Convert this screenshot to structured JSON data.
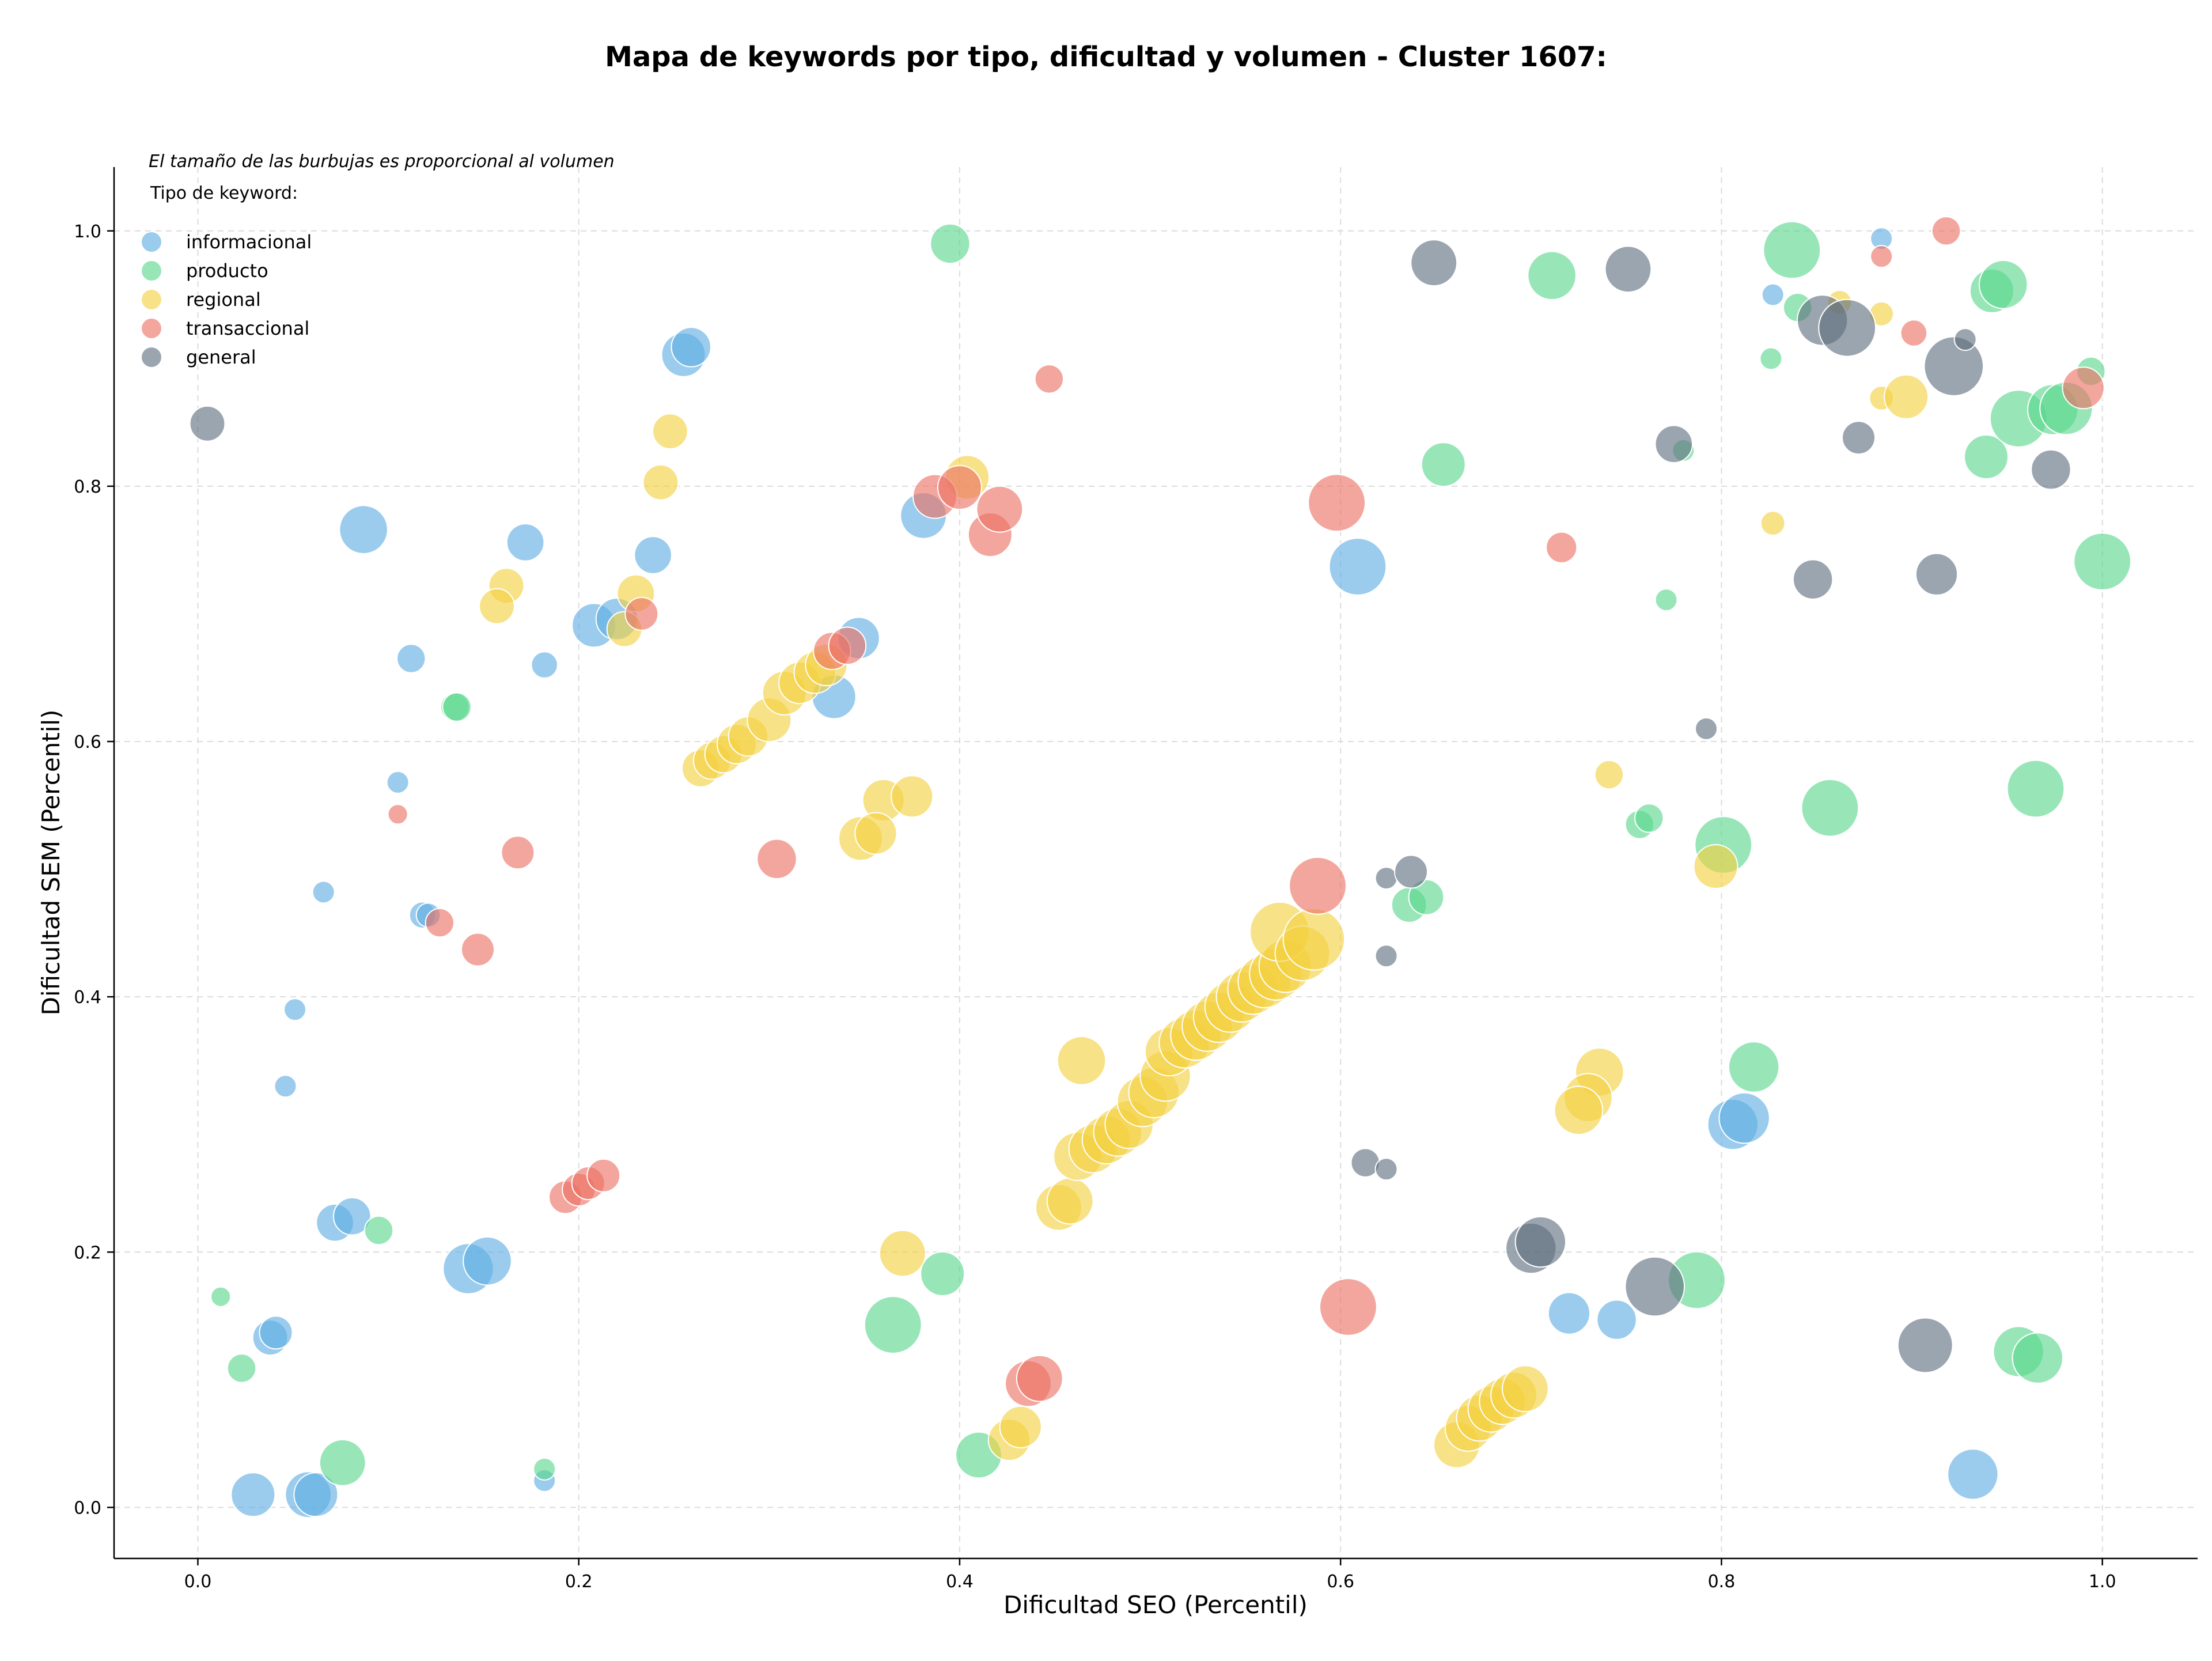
{
  "chart_data": {
    "type": "scatter",
    "title": "Mapa de keywords por tipo, dificultad y volumen - Cluster 1607:",
    "xlabel": "Dificultad SEO (Percentil)",
    "ylabel": "Dificultad SEM (Percentil)",
    "xlim": [
      -0.044,
      1.05
    ],
    "ylim": [
      -0.04,
      1.05
    ],
    "x_ticks": [
      "0.0",
      "0.2",
      "0.4",
      "0.6",
      "0.8",
      "1.0"
    ],
    "y_ticks": [
      "0.0",
      "0.2",
      "0.4",
      "0.6",
      "0.8",
      "1.0"
    ],
    "grid": true,
    "note": "El tamaño de las burbujas es proporcional al volumen",
    "legend_title": "Tipo de keyword:",
    "legend_position": "top-left",
    "series": [
      {
        "name": "informacional",
        "color": "#5DADE2",
        "points": [
          [
            0.255,
            0.903,
            2.0
          ],
          [
            0.259,
            0.909,
            1.8
          ],
          [
            0.087,
            0.766,
            2.2
          ],
          [
            0.172,
            0.756,
            1.7
          ],
          [
            0.239,
            0.746,
            1.7
          ],
          [
            0.208,
            0.691,
            2.0
          ],
          [
            0.22,
            0.696,
            1.9
          ],
          [
            0.347,
            0.681,
            1.9
          ],
          [
            0.334,
            0.635,
            2.0
          ],
          [
            0.112,
            0.665,
            1.3
          ],
          [
            0.182,
            0.66,
            1.2
          ],
          [
            0.105,
            0.568,
            1.0
          ],
          [
            0.066,
            0.482,
            1.0
          ],
          [
            0.118,
            0.464,
            1.2
          ],
          [
            0.121,
            0.464,
            1.1
          ],
          [
            0.051,
            0.39,
            1.0
          ],
          [
            0.046,
            0.33,
            1.0
          ],
          [
            0.072,
            0.223,
            1.7
          ],
          [
            0.081,
            0.228,
            1.7
          ],
          [
            0.142,
            0.187,
            2.3
          ],
          [
            0.152,
            0.193,
            2.2
          ],
          [
            0.038,
            0.133,
            1.6
          ],
          [
            0.041,
            0.137,
            1.5
          ],
          [
            0.029,
            0.01,
            2.0
          ],
          [
            0.058,
            0.01,
            2.1
          ],
          [
            0.062,
            0.01,
            2.0
          ],
          [
            0.182,
            0.021,
            1.0
          ],
          [
            0.381,
            0.777,
            2.1
          ],
          [
            0.609,
            0.737,
            2.6
          ],
          [
            0.806,
            0.3,
            2.3
          ],
          [
            0.812,
            0.305,
            2.3
          ],
          [
            0.72,
            0.152,
            1.9
          ],
          [
            0.745,
            0.147,
            1.8
          ],
          [
            0.932,
            0.026,
            2.3
          ],
          [
            0.827,
            0.95,
            1.0
          ],
          [
            0.884,
            0.994,
            1.0
          ]
        ]
      },
      {
        "name": "producto",
        "color": "#58D68D",
        "points": [
          [
            0.395,
            0.99,
            1.8
          ],
          [
            0.135,
            0.627,
            1.3
          ],
          [
            0.136,
            0.627,
            1.3
          ],
          [
            0.095,
            0.217,
            1.3
          ],
          [
            0.012,
            0.165,
            0.9
          ],
          [
            0.023,
            0.109,
            1.3
          ],
          [
            0.076,
            0.035,
            2.1
          ],
          [
            0.182,
            0.03,
            1.0
          ],
          [
            0.365,
            0.143,
            2.6
          ],
          [
            0.391,
            0.183,
            2.0
          ],
          [
            0.41,
            0.041,
            2.1
          ],
          [
            0.654,
            0.817,
            2.0
          ],
          [
            0.711,
            0.965,
            2.2
          ],
          [
            0.771,
            0.711,
            1.0
          ],
          [
            0.78,
            0.828,
            1.0
          ],
          [
            0.757,
            0.535,
            1.3
          ],
          [
            0.762,
            0.54,
            1.3
          ],
          [
            0.636,
            0.472,
            1.6
          ],
          [
            0.645,
            0.478,
            1.6
          ],
          [
            0.801,
            0.519,
            2.6
          ],
          [
            0.817,
            0.345,
            2.3
          ],
          [
            0.787,
            0.178,
            2.6
          ],
          [
            0.857,
            0.548,
            2.6
          ],
          [
            0.826,
            0.9,
            1.0
          ],
          [
            0.837,
            0.985,
            2.6
          ],
          [
            0.84,
            0.94,
            1.3
          ],
          [
            0.942,
            0.953,
            2.0
          ],
          [
            0.948,
            0.958,
            2.2
          ],
          [
            0.939,
            0.823,
            2.0
          ],
          [
            0.956,
            0.853,
            2.6
          ],
          [
            0.994,
            0.89,
            1.3
          ],
          [
            0.974,
            0.86,
            2.3
          ],
          [
            0.981,
            0.861,
            2.4
          ],
          [
            1.0,
            0.741,
            2.6
          ],
          [
            0.965,
            0.563,
            2.6
          ],
          [
            0.956,
            0.122,
            2.3
          ],
          [
            0.966,
            0.117,
            2.3
          ]
        ]
      },
      {
        "name": "regional",
        "color": "#F4D03F",
        "points": [
          [
            0.248,
            0.843,
            1.6
          ],
          [
            0.243,
            0.803,
            1.6
          ],
          [
            0.162,
            0.722,
            1.6
          ],
          [
            0.157,
            0.706,
            1.6
          ],
          [
            0.23,
            0.716,
            1.7
          ],
          [
            0.224,
            0.688,
            1.6
          ],
          [
            0.264,
            0.579,
            1.7
          ],
          [
            0.27,
            0.585,
            1.7
          ],
          [
            0.276,
            0.59,
            1.7
          ],
          [
            0.283,
            0.598,
            1.8
          ],
          [
            0.289,
            0.604,
            1.8
          ],
          [
            0.3,
            0.617,
            2.0
          ],
          [
            0.308,
            0.638,
            2.0
          ],
          [
            0.316,
            0.646,
            1.9
          ],
          [
            0.324,
            0.654,
            1.9
          ],
          [
            0.33,
            0.66,
            1.9
          ],
          [
            0.36,
            0.554,
            1.9
          ],
          [
            0.375,
            0.557,
            1.9
          ],
          [
            0.348,
            0.524,
            2.0
          ],
          [
            0.356,
            0.528,
            1.9
          ],
          [
            0.37,
            0.199,
            2.1
          ],
          [
            0.404,
            0.807,
            2.0
          ],
          [
            0.452,
            0.235,
            2.1
          ],
          [
            0.458,
            0.24,
            2.1
          ],
          [
            0.464,
            0.35,
            2.2
          ],
          [
            0.462,
            0.275,
            2.2
          ],
          [
            0.47,
            0.281,
            2.2
          ],
          [
            0.477,
            0.288,
            2.2
          ],
          [
            0.483,
            0.294,
            2.2
          ],
          [
            0.489,
            0.3,
            2.2
          ],
          [
            0.496,
            0.318,
            2.3
          ],
          [
            0.502,
            0.325,
            2.3
          ],
          [
            0.508,
            0.338,
            2.3
          ],
          [
            0.51,
            0.357,
            2.2
          ],
          [
            0.518,
            0.364,
            2.3
          ],
          [
            0.524,
            0.37,
            2.3
          ],
          [
            0.53,
            0.377,
            2.3
          ],
          [
            0.536,
            0.384,
            2.3
          ],
          [
            0.542,
            0.392,
            2.3
          ],
          [
            0.548,
            0.4,
            2.3
          ],
          [
            0.554,
            0.406,
            2.3
          ],
          [
            0.56,
            0.412,
            2.4
          ],
          [
            0.566,
            0.418,
            2.4
          ],
          [
            0.571,
            0.424,
            2.4
          ],
          [
            0.568,
            0.451,
            2.7
          ],
          [
            0.58,
            0.434,
            2.5
          ],
          [
            0.586,
            0.445,
            2.8
          ],
          [
            0.426,
            0.053,
            1.9
          ],
          [
            0.432,
            0.063,
            1.9
          ],
          [
            0.661,
            0.049,
            2.1
          ],
          [
            0.667,
            0.062,
            2.1
          ],
          [
            0.673,
            0.07,
            2.1
          ],
          [
            0.679,
            0.077,
            2.1
          ],
          [
            0.685,
            0.083,
            2.1
          ],
          [
            0.691,
            0.088,
            2.1
          ],
          [
            0.697,
            0.093,
            2.1
          ],
          [
            0.736,
            0.341,
            2.2
          ],
          [
            0.73,
            0.321,
            2.2
          ],
          [
            0.725,
            0.311,
            2.2
          ],
          [
            0.741,
            0.574,
            1.3
          ],
          [
            0.797,
            0.502,
            2.0
          ],
          [
            0.827,
            0.771,
            1.1
          ],
          [
            0.862,
            0.944,
            1.1
          ],
          [
            0.884,
            0.935,
            1.1
          ],
          [
            0.884,
            0.869,
            1.1
          ],
          [
            0.897,
            0.87,
            2.0
          ]
        ]
      },
      {
        "name": "transaccional",
        "color": "#EC7063",
        "points": [
          [
            0.233,
            0.7,
            1.5
          ],
          [
            0.105,
            0.543,
            0.9
          ],
          [
            0.168,
            0.513,
            1.5
          ],
          [
            0.127,
            0.458,
            1.3
          ],
          [
            0.147,
            0.437,
            1.5
          ],
          [
            0.193,
            0.243,
            1.5
          ],
          [
            0.2,
            0.249,
            1.5
          ],
          [
            0.205,
            0.254,
            1.5
          ],
          [
            0.213,
            0.26,
            1.5
          ],
          [
            0.304,
            0.508,
            1.8
          ],
          [
            0.333,
            0.671,
            1.7
          ],
          [
            0.341,
            0.675,
            1.7
          ],
          [
            0.387,
            0.792,
            2.0
          ],
          [
            0.4,
            0.799,
            2.0
          ],
          [
            0.416,
            0.762,
            2.0
          ],
          [
            0.421,
            0.782,
            2.1
          ],
          [
            0.436,
            0.097,
            2.1
          ],
          [
            0.442,
            0.101,
            2.1
          ],
          [
            0.447,
            0.884,
            1.3
          ],
          [
            0.598,
            0.787,
            2.6
          ],
          [
            0.588,
            0.487,
            2.6
          ],
          [
            0.604,
            0.157,
            2.6
          ],
          [
            0.716,
            0.752,
            1.4
          ],
          [
            0.884,
            0.98,
            1.0
          ],
          [
            0.918,
            1.0,
            1.3
          ],
          [
            0.901,
            0.92,
            1.2
          ],
          [
            0.99,
            0.877,
            1.9
          ]
        ]
      },
      {
        "name": "general",
        "color": "#5D6D7E",
        "points": [
          [
            0.005,
            0.849,
            1.6
          ],
          [
            0.649,
            0.975,
            2.1
          ],
          [
            0.751,
            0.97,
            2.1
          ],
          [
            0.853,
            0.93,
            2.3
          ],
          [
            0.866,
            0.924,
            2.6
          ],
          [
            0.922,
            0.894,
            2.7
          ],
          [
            0.928,
            0.915,
            1.0
          ],
          [
            0.775,
            0.833,
            1.7
          ],
          [
            0.872,
            0.838,
            1.5
          ],
          [
            0.973,
            0.813,
            1.8
          ],
          [
            0.848,
            0.727,
            1.8
          ],
          [
            0.913,
            0.731,
            1.9
          ],
          [
            0.792,
            0.61,
            1.0
          ],
          [
            0.624,
            0.493,
            1.0
          ],
          [
            0.637,
            0.498,
            1.5
          ],
          [
            0.624,
            0.432,
            1.0
          ],
          [
            0.613,
            0.27,
            1.3
          ],
          [
            0.624,
            0.265,
            1.0
          ],
          [
            0.7,
            0.203,
            2.3
          ],
          [
            0.705,
            0.208,
            2.3
          ],
          [
            0.765,
            0.173,
            2.7
          ],
          [
            0.907,
            0.127,
            2.5
          ]
        ]
      }
    ]
  }
}
